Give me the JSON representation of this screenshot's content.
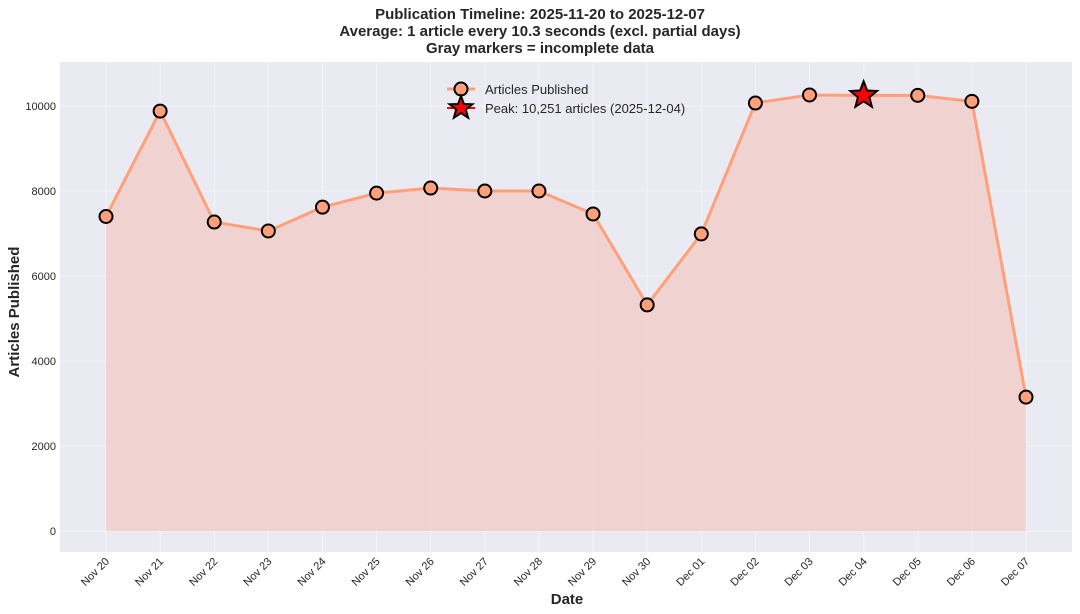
{
  "chart_data": {
    "type": "line",
    "title": "Publication Timeline: 2025-11-20 to 2025-12-07",
    "subtitle_lines": [
      "Average: 1 article every 10.3 seconds (excl. partial days)",
      "Gray markers = incomplete data"
    ],
    "xlabel": "Date",
    "ylabel": "Articles Published",
    "categories": [
      "Nov 20",
      "Nov 21",
      "Nov 22",
      "Nov 23",
      "Nov 24",
      "Nov 25",
      "Nov 26",
      "Nov 27",
      "Nov 28",
      "Nov 29",
      "Nov 30",
      "Dec 01",
      "Dec 02",
      "Dec 03",
      "Dec 04",
      "Dec 05",
      "Dec 06",
      "Dec 07"
    ],
    "series": [
      {
        "name": "Articles Published",
        "values": [
          7400,
          9880,
          7270,
          7060,
          7620,
          7950,
          8070,
          8000,
          8000,
          7460,
          5320,
          6990,
          10070,
          10260,
          10251,
          10250,
          10110,
          3150
        ],
        "color": "#FFA07A",
        "fill": true
      }
    ],
    "peak": {
      "label": "Peak: 10,251 articles (2025-12-04)",
      "date": "Dec 04",
      "value": 10251,
      "color": "#FF0000"
    },
    "yticks": [
      0,
      2000,
      4000,
      6000,
      8000,
      10000
    ],
    "ylim": [
      -500,
      10800
    ],
    "grid": true,
    "legend_position": "upper center"
  },
  "legend": {
    "items": [
      {
        "label": "Articles Published"
      },
      {
        "label": "Peak: 10,251 articles (2025-12-04)"
      }
    ]
  },
  "colors": {
    "plot_bg": "#EAEAF2",
    "line": "#FFA07A",
    "fill": "#F0D2CD",
    "marker_edge": "#000000",
    "peak": "#FF0000"
  }
}
